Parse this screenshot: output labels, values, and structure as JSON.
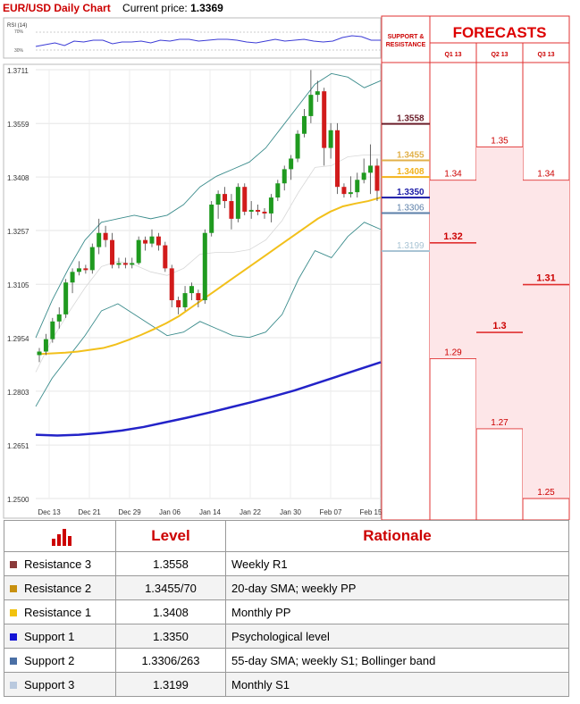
{
  "header": {
    "title": "EUR/USD Daily Chart",
    "current_price_label": "Current price:",
    "current_price": "1.3369"
  },
  "rsi": {
    "label": "RSI (14)",
    "upper": "70%",
    "lower": "30%"
  },
  "panel": {
    "sr_title_1": "SUPPORT &",
    "sr_title_2": "RESISTANCE",
    "forecast_title": "FORECASTS",
    "columns": [
      "Q1 13",
      "Q2 13",
      "Q3 13"
    ]
  },
  "chart_data": {
    "type": "candlestick",
    "title": "EUR/USD Daily Chart",
    "y_ticks": [
      "1.3711",
      "1.3559",
      "1.3408",
      "1.3257",
      "1.3105",
      "1.2954",
      "1.2803",
      "1.2651",
      "1.2500"
    ],
    "ylim": [
      1.25,
      1.3711
    ],
    "x_ticks": [
      "Dec 13",
      "Dec 21",
      "Dec 29",
      "Jan 06",
      "Jan 14",
      "Jan 22",
      "Jan 30",
      "Feb 07",
      "Feb 15"
    ],
    "candles": [
      [
        1.2905,
        1.2925,
        1.2885,
        1.2915
      ],
      [
        1.2915,
        1.2965,
        1.2905,
        1.295
      ],
      [
        1.295,
        1.301,
        1.294,
        1.3
      ],
      [
        1.3,
        1.304,
        1.298,
        1.302
      ],
      [
        1.302,
        1.312,
        1.301,
        1.311
      ],
      [
        1.311,
        1.315,
        1.308,
        1.314
      ],
      [
        1.314,
        1.317,
        1.313,
        1.315
      ],
      [
        1.315,
        1.316,
        1.3135,
        1.3145
      ],
      [
        1.3145,
        1.322,
        1.3135,
        1.321
      ],
      [
        1.321,
        1.329,
        1.319,
        1.325
      ],
      [
        1.325,
        1.327,
        1.321,
        1.323
      ],
      [
        1.323,
        1.325,
        1.315,
        1.316
      ],
      [
        1.316,
        1.318,
        1.315,
        1.3165
      ],
      [
        1.3165,
        1.318,
        1.315,
        1.316
      ],
      [
        1.316,
        1.318,
        1.315,
        1.3165
      ],
      [
        1.3165,
        1.324,
        1.316,
        1.323
      ],
      [
        1.323,
        1.324,
        1.32,
        1.322
      ],
      [
        1.322,
        1.326,
        1.321,
        1.324
      ],
      [
        1.324,
        1.325,
        1.32,
        1.3215
      ],
      [
        1.3215,
        1.3225,
        1.314,
        1.315
      ],
      [
        1.315,
        1.316,
        1.304,
        1.306
      ],
      [
        1.306,
        1.307,
        1.302,
        1.304
      ],
      [
        1.304,
        1.31,
        1.303,
        1.308
      ],
      [
        1.308,
        1.311,
        1.306,
        1.31
      ],
      [
        1.308,
        1.309,
        1.304,
        1.306
      ],
      [
        1.306,
        1.326,
        1.305,
        1.325
      ],
      [
        1.325,
        1.334,
        1.324,
        1.333
      ],
      [
        1.333,
        1.337,
        1.329,
        1.336
      ],
      [
        1.336,
        1.338,
        1.332,
        1.334
      ],
      [
        1.334,
        1.336,
        1.326,
        1.329
      ],
      [
        1.329,
        1.339,
        1.328,
        1.338
      ],
      [
        1.338,
        1.339,
        1.33,
        1.331
      ],
      [
        1.331,
        1.334,
        1.329,
        1.3315
      ],
      [
        1.3315,
        1.333,
        1.33,
        1.331
      ],
      [
        1.331,
        1.332,
        1.329,
        1.3305
      ],
      [
        1.3305,
        1.336,
        1.328,
        1.335
      ],
      [
        1.335,
        1.34,
        1.334,
        1.339
      ],
      [
        1.339,
        1.344,
        1.337,
        1.343
      ],
      [
        1.343,
        1.347,
        1.34,
        1.346
      ],
      [
        1.346,
        1.354,
        1.345,
        1.353
      ],
      [
        1.353,
        1.36,
        1.352,
        1.358
      ],
      [
        1.358,
        1.371,
        1.356,
        1.364
      ],
      [
        1.364,
        1.368,
        1.362,
        1.365
      ],
      [
        1.365,
        1.366,
        1.344,
        1.349
      ],
      [
        1.349,
        1.356,
        1.346,
        1.354
      ],
      [
        1.354,
        1.356,
        1.336,
        1.338
      ],
      [
        1.338,
        1.339,
        1.335,
        1.336
      ],
      [
        1.336,
        1.341,
        1.335,
        1.3365
      ],
      [
        1.3365,
        1.342,
        1.335,
        1.34
      ],
      [
        1.34,
        1.346,
        1.339,
        1.342
      ],
      [
        1.342,
        1.35,
        1.336,
        1.344
      ],
      [
        1.344,
        1.346,
        1.334,
        1.3369
      ]
    ],
    "sma_yellow": [
      1.2908,
      1.291,
      1.2912,
      1.2915,
      1.292,
      1.2925,
      1.2935,
      1.2948,
      1.2962,
      1.2978,
      1.2995,
      1.3015,
      1.304,
      1.3065,
      1.309,
      1.3115,
      1.314,
      1.3165,
      1.319,
      1.3215,
      1.324,
      1.3265,
      1.329,
      1.331,
      1.3325,
      1.3333,
      1.334,
      1.335
    ],
    "sma_blue": [
      1.268,
      1.2678,
      1.268,
      1.2685,
      1.2692,
      1.2702,
      1.2715,
      1.2728,
      1.2742,
      1.2757,
      1.2772,
      1.2788,
      1.2805,
      1.2825,
      1.2845,
      1.2865,
      1.2885
    ],
    "levels": [
      {
        "value": "1.3558",
        "color": "#6b1e2a"
      },
      {
        "value": "1.3455",
        "color": "#e1b04a"
      },
      {
        "value": "1.3408",
        "color": "#f2b31c"
      },
      {
        "value": "1.3350",
        "color": "#1a1aa6"
      },
      {
        "value": "1.3306",
        "color": "#5b7fa8"
      },
      {
        "value": "1.3199",
        "color": "#a8c4d4"
      }
    ],
    "forecasts": [
      [
        {
          "value": "1.34"
        },
        {
          "value": "1.32",
          "bold": true
        },
        {
          "value": "1.29"
        }
      ],
      [
        {
          "value": "1.35"
        },
        {
          "value": "1.3",
          "bold": true
        },
        {
          "value": "1.27"
        }
      ],
      [
        {
          "value": "1.34"
        },
        {
          "value": "1.31",
          "bold": true
        },
        {
          "value": "1.25"
        }
      ]
    ],
    "forecast_y": [
      [
        1.3399,
        1.3222,
        1.2895
      ],
      [
        1.3493,
        1.2969,
        1.2697
      ],
      [
        1.3399,
        1.3104,
        1.25
      ]
    ]
  },
  "table": {
    "headers": [
      "Level",
      "Rationale"
    ],
    "rows": [
      {
        "name": "Resistance 3",
        "level": "1.3558",
        "rationale": "Weekly R1",
        "color": "#8b3a3a"
      },
      {
        "name": "Resistance 2",
        "level": "1.3455/70",
        "rationale": "20-day SMA; weekly PP",
        "color": "#c8900f"
      },
      {
        "name": "Resistance 1",
        "level": "1.3408",
        "rationale": "Monthly PP",
        "color": "#f2c20e"
      },
      {
        "name": "Support 1",
        "level": "1.3350",
        "rationale": "Psychological level",
        "color": "#1414d6"
      },
      {
        "name": "Support 2",
        "level": "1.3306/263",
        "rationale": "55-day SMA; weekly S1; Bollinger band",
        "color": "#4a6fa5"
      },
      {
        "name": "Support 3",
        "level": "1.3199",
        "rationale": "Monthly S1",
        "color": "#b9c9de"
      }
    ]
  }
}
